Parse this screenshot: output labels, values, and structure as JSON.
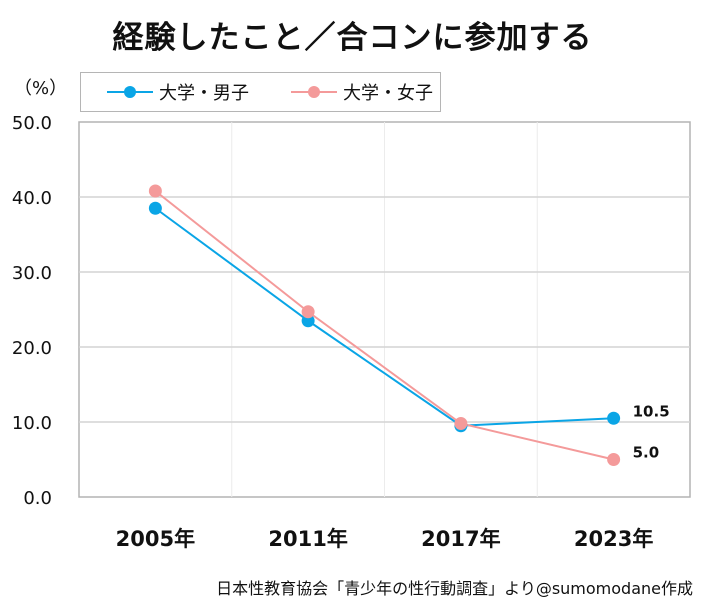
{
  "chart_data": {
    "type": "line",
    "title": "経験したこと／合コンに参加する",
    "unit_label": "（%）",
    "categories": [
      "2005年",
      "2011年",
      "2017年",
      "2023年"
    ],
    "ylim": [
      0,
      50
    ],
    "yticks": [
      "0.0",
      "10.0",
      "20.0",
      "30.0",
      "40.0",
      "50.0"
    ],
    "grid": true,
    "legend_position": "top",
    "series": [
      {
        "name": "大学・男子",
        "color": "#0aa5e6",
        "values": [
          38.5,
          23.5,
          9.5,
          10.5
        ]
      },
      {
        "name": "大学・女子",
        "color": "#f49a9a",
        "values": [
          40.8,
          24.7,
          9.8,
          5.0
        ]
      }
    ],
    "end_labels": [
      "10.5",
      "5.0"
    ],
    "source": "日本性教育協会「青少年の性行動調査」より@sumomodane作成"
  }
}
